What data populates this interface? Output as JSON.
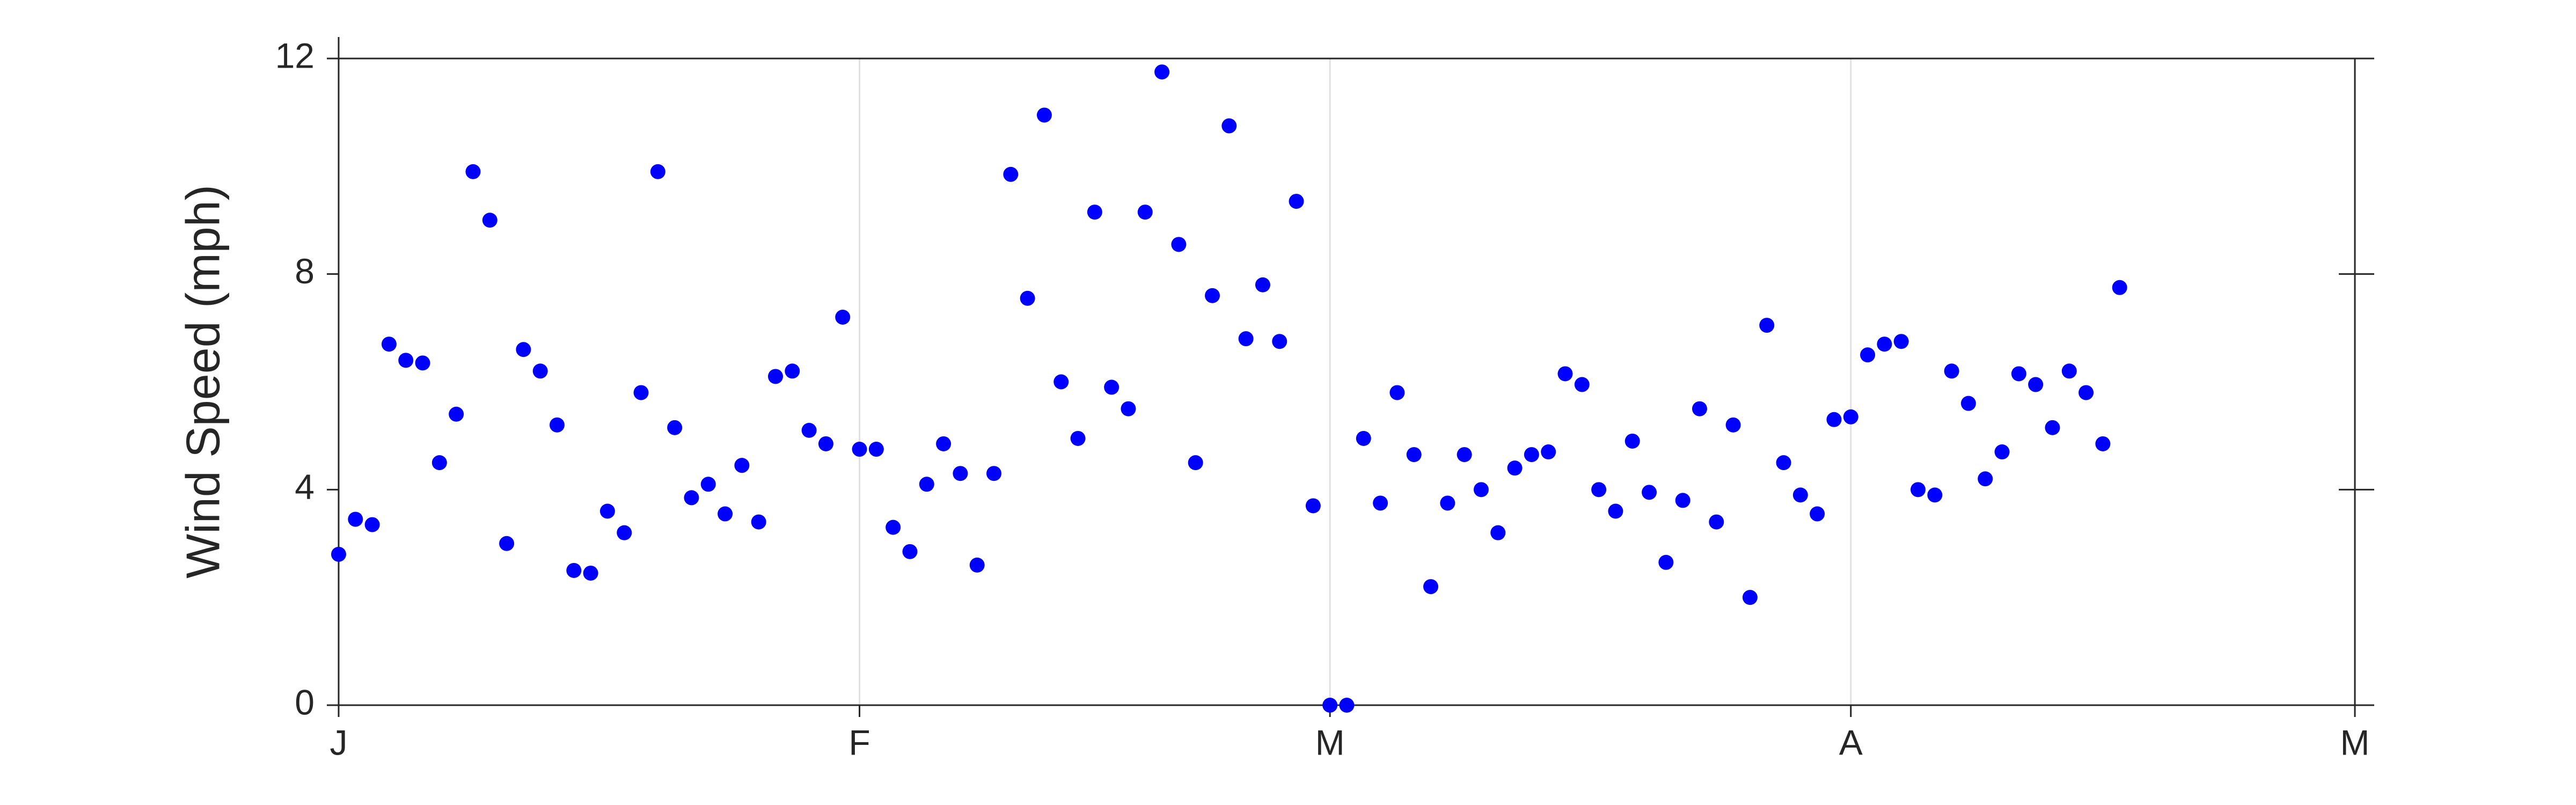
{
  "chart_data": {
    "type": "scatter",
    "y_label": "Wind Speed (mph)",
    "x": [
      0,
      1,
      2,
      3,
      4,
      5,
      6,
      7,
      8,
      9,
      10,
      11,
      12,
      13,
      14,
      15,
      16,
      17,
      18,
      19,
      20,
      21,
      22,
      23,
      24,
      25,
      26,
      27,
      28,
      29,
      30,
      31,
      32,
      33,
      34,
      35,
      36,
      37,
      38,
      39,
      40,
      41,
      42,
      43,
      44,
      45,
      46,
      47,
      48,
      49,
      50,
      51,
      52,
      53,
      54,
      55,
      56,
      57,
      58,
      59,
      60,
      61,
      62,
      63,
      64,
      65,
      66,
      67,
      68,
      69,
      70,
      71,
      72,
      73,
      74,
      75,
      76,
      77,
      78,
      79,
      80,
      81,
      82,
      83,
      84,
      85,
      86,
      87,
      88,
      89,
      90,
      91,
      92,
      93,
      94,
      95,
      96,
      97,
      98,
      99,
      100,
      101,
      102,
      103,
      104,
      105,
      106
    ],
    "values": [
      2.8,
      3.45,
      3.35,
      6.7,
      6.4,
      6.35,
      4.5,
      5.4,
      9.9,
      9.0,
      3.0,
      6.6,
      6.2,
      5.2,
      2.5,
      2.45,
      3.6,
      3.2,
      5.8,
      9.9,
      5.15,
      3.85,
      4.1,
      3.55,
      4.45,
      3.4,
      6.1,
      6.2,
      5.1,
      4.85,
      7.2,
      4.75,
      4.75,
      3.3,
      2.85,
      4.1,
      4.85,
      4.3,
      2.6,
      4.3,
      9.85,
      7.55,
      10.95,
      6.0,
      4.95,
      9.15,
      5.9,
      5.5,
      9.15,
      11.75,
      8.55,
      4.5,
      7.6,
      10.75,
      6.8,
      7.8,
      6.75,
      9.35,
      3.7,
      0,
      0,
      4.95,
      3.75,
      5.8,
      4.65,
      2.2,
      3.75,
      4.65,
      4.0,
      3.2,
      4.4,
      4.65,
      4.7,
      6.15,
      5.95,
      4.0,
      3.6,
      4.9,
      3.95,
      2.65,
      3.8,
      5.5,
      3.4,
      5.2,
      2.0,
      7.05,
      4.5,
      3.9,
      3.55,
      5.3,
      5.35,
      6.5,
      6.7,
      6.75,
      4.0,
      3.9,
      6.2,
      5.6,
      4.2,
      4.7,
      6.15,
      5.95,
      5.15,
      6.2,
      5.8,
      4.85,
      7.75
    ],
    "color": "#0000ff",
    "xlim": [
      0,
      120
    ],
    "xticks": [
      {
        "value": 0,
        "label": "J"
      },
      {
        "value": 31,
        "label": "F"
      },
      {
        "value": 59,
        "label": "M"
      },
      {
        "value": 90,
        "label": "A"
      },
      {
        "value": 120,
        "label": "M"
      }
    ],
    "ylim": [
      0,
      12
    ],
    "yticks": [
      0,
      4,
      8,
      12
    ],
    "grid": true
  }
}
